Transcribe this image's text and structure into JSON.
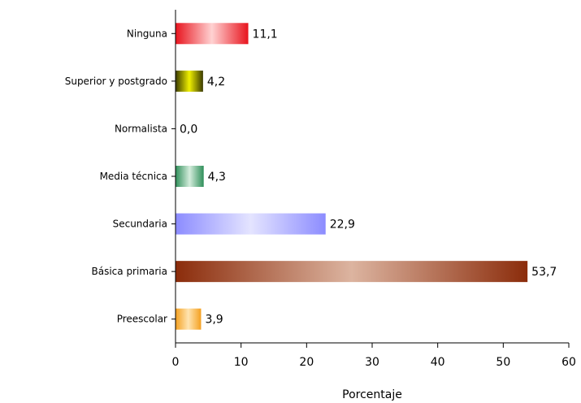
{
  "chart_data": {
    "type": "bar",
    "orientation": "horizontal",
    "title": "",
    "xlabel": "Porcentaje",
    "ylabel": "",
    "xlim": [
      0,
      60
    ],
    "xticks": [
      0,
      10,
      20,
      30,
      40,
      50,
      60
    ],
    "grid": false,
    "legend": "none",
    "categories": [
      "Ninguna",
      "Superior y postgrado",
      "Normalista",
      "Media técnica",
      "Secundaria",
      "Básica primaria",
      "Preescolar"
    ],
    "values": [
      11.1,
      4.2,
      0.0,
      4.3,
      22.9,
      53.7,
      3.9
    ],
    "value_labels": [
      "11,1",
      "4,2",
      "0,0",
      "4,3",
      "22,9",
      "53,7",
      "3,9"
    ],
    "bar_colors": [
      {
        "dark": "#e8141e",
        "light": "#ffd2d2"
      },
      {
        "dark": "#3a3a00",
        "light": "#f0f000"
      },
      {
        "dark": "#808080",
        "light": "#c0c0c0"
      },
      {
        "dark": "#2f8f5a",
        "light": "#d4ecdc"
      },
      {
        "dark": "#8c8cff",
        "light": "#e4e4ff"
      },
      {
        "dark": "#8b2c0b",
        "light": "#dcb4a0"
      },
      {
        "dark": "#f4a020",
        "light": "#ffe4b0"
      }
    ]
  }
}
